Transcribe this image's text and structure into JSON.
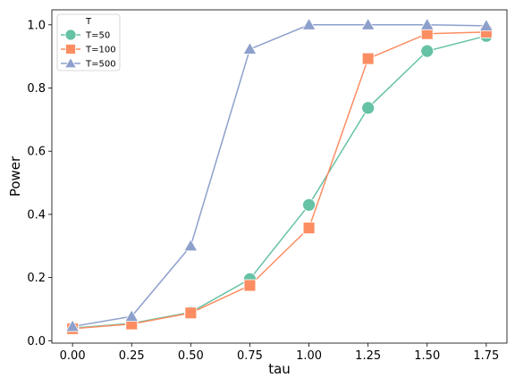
{
  "chart_data": {
    "type": "line",
    "xlabel": "tau",
    "ylabel": "Power",
    "xlim": [
      -0.0875,
      1.8375
    ],
    "ylim": [
      -0.0075,
      1.0475
    ],
    "xticks": [
      0.0,
      0.25,
      0.5,
      0.75,
      1.0,
      1.25,
      1.5,
      1.75
    ],
    "xtick_labels": [
      "0.00",
      "0.25",
      "0.50",
      "0.75",
      "1.00",
      "1.25",
      "1.50",
      "1.75"
    ],
    "yticks": [
      0.0,
      0.2,
      0.4,
      0.6,
      0.8,
      1.0
    ],
    "ytick_labels": [
      "0.0",
      "0.2",
      "0.4",
      "0.6",
      "0.8",
      "1.0"
    ],
    "grid": false,
    "legend": {
      "title": "T",
      "placement": "top-left"
    },
    "x": [
      0.0,
      0.25,
      0.5,
      0.75,
      1.0,
      1.25,
      1.5,
      1.75
    ],
    "series": [
      {
        "name": "T=50",
        "marker": "circle",
        "color": "#66c2a5",
        "values": [
          0.04,
          0.055,
          0.09,
          0.195,
          0.43,
          0.737,
          0.917,
          0.965
        ]
      },
      {
        "name": "T=100",
        "marker": "square",
        "color": "#fc8d62",
        "values": [
          0.038,
          0.053,
          0.088,
          0.175,
          0.357,
          0.893,
          0.972,
          0.977
        ]
      },
      {
        "name": "T=500",
        "marker": "triangle",
        "color": "#8da0cb",
        "values": [
          0.045,
          0.077,
          0.3,
          0.923,
          1.0,
          1.0,
          1.0,
          0.997
        ]
      }
    ]
  }
}
